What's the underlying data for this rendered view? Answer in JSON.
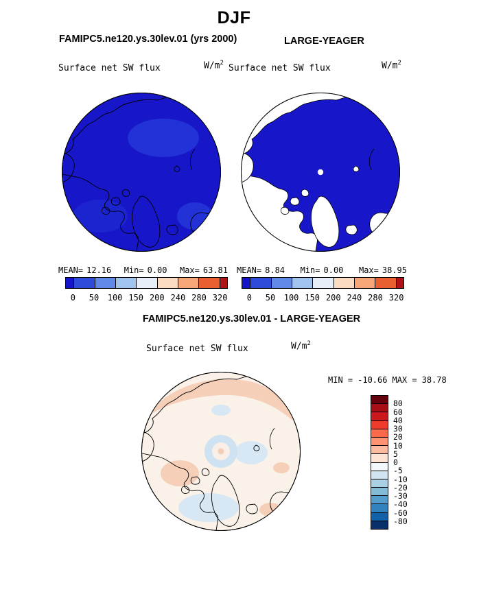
{
  "header": {
    "season": "DJF",
    "model_case": "FAMIPC5.ne120.ys.30lev.01 (yrs 2000)",
    "obs_case": "LARGE-YEAGER",
    "diff_case": "FAMIPC5.ne120.ys.30lev.01 - LARGE-YEAGER"
  },
  "palette": {
    "ocean": "#1717c9",
    "land": "#ffffff",
    "coastline": "#000000",
    "model_shade_a": "#2232d6",
    "model_shade_b": "#1b24cf",
    "diff_base": "#faf1e9",
    "diff_pos_light": "#f5cfb8",
    "diff_neg_light": "#d7e7f4",
    "diff_ring_blue": "#cfe2f1",
    "diff_ring_core": "#f9efe6",
    "diff_center_dot": "#f3cdb6"
  },
  "chart_data": [
    {
      "type": "heatmap",
      "panel": "model",
      "projection": "north-polar-stereographic",
      "title": "Surface net SW flux",
      "units": "W/m^2",
      "units_base": "W/m",
      "units_exp": "2",
      "stats": {
        "mean_label": "MEAN=",
        "mean": "12.16",
        "min_label": "Min=",
        "min": "0.00",
        "max_label": "Max=",
        "max": "63.81"
      },
      "colorbar": {
        "orientation": "horizontal",
        "levels": [
          0,
          50,
          100,
          150,
          200,
          240,
          280,
          320
        ],
        "ticks": [
          "0",
          "50",
          "100",
          "150",
          "200",
          "240",
          "280",
          "320"
        ],
        "colors": [
          "#1414c8",
          "#2e4cd8",
          "#6189e8",
          "#a3c3ef",
          "#e8eef7",
          "#fbdcc3",
          "#f7a677",
          "#e8602f",
          "#ae1417"
        ]
      }
    },
    {
      "type": "heatmap",
      "panel": "observation",
      "projection": "north-polar-stereographic",
      "title": "Surface net SW flux",
      "units": "W/m^2",
      "units_base": "W/m",
      "units_exp": "2",
      "stats": {
        "mean_label": "MEAN=",
        "mean": "8.84",
        "min_label": "Min=",
        "min": "0.00",
        "max_label": "Max=",
        "max": "38.95"
      },
      "colorbar": {
        "orientation": "horizontal",
        "levels": [
          0,
          50,
          100,
          150,
          200,
          240,
          280,
          320
        ],
        "ticks": [
          "0",
          "50",
          "100",
          "150",
          "200",
          "240",
          "280",
          "320"
        ],
        "colors": [
          "#1414c8",
          "#2e4cd8",
          "#6189e8",
          "#a3c3ef",
          "#e8eef7",
          "#fbdcc3",
          "#f7a677",
          "#e8602f",
          "#ae1417"
        ]
      }
    },
    {
      "type": "heatmap",
      "panel": "difference",
      "projection": "north-polar-stereographic",
      "title": "Surface net SW flux",
      "units": "W/m^2",
      "units_base": "W/m",
      "units_exp": "2",
      "stats": {
        "min_label": "MIN =",
        "min": "-10.66",
        "max_label": "MAX =",
        "max": "38.78"
      },
      "colorbar": {
        "orientation": "vertical",
        "levels": [
          80,
          60,
          40,
          30,
          20,
          10,
          5,
          0,
          -5,
          -10,
          -20,
          -30,
          -40,
          -60,
          -80
        ],
        "ticks": [
          "80",
          "60",
          "40",
          "30",
          "20",
          "10",
          "5",
          "0",
          "-5",
          "-10",
          "-20",
          "-30",
          "-40",
          "-60",
          "-80"
        ],
        "colors": [
          "#67000d",
          "#a50f15",
          "#cb181d",
          "#ef3b2c",
          "#fb6a4a",
          "#fc9272",
          "#fcbba1",
          "#fde3d4",
          "#f3f8fc",
          "#d1e5f0",
          "#abd0e6",
          "#82bad8",
          "#539dcc",
          "#3182be",
          "#1361a9",
          "#08306b"
        ]
      }
    }
  ]
}
